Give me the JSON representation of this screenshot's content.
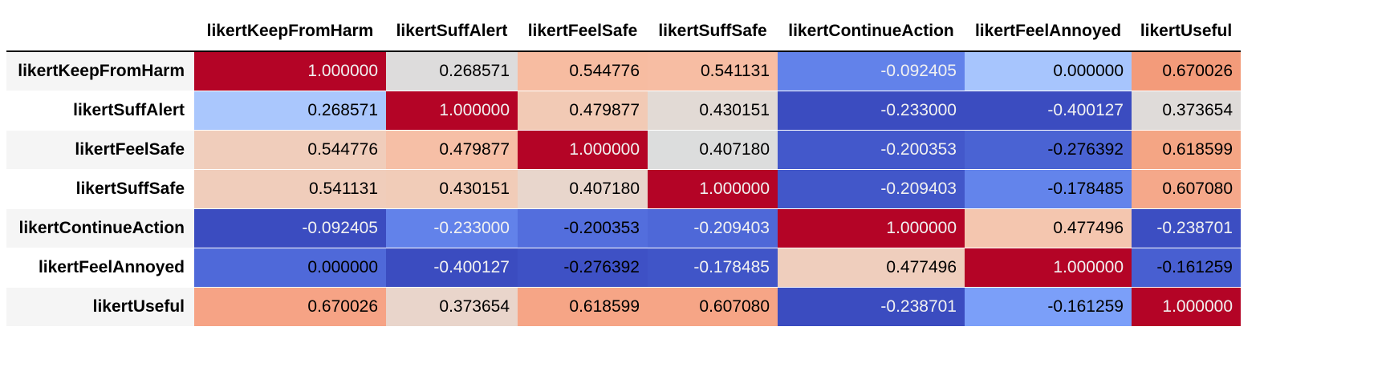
{
  "chart_data": {
    "type": "heatmap",
    "colormap": "coolwarm",
    "vmin": -0.400127,
    "vmax": 1.0,
    "columns": [
      "likertKeepFromHarm",
      "likertSuffAlert",
      "likertFeelSafe",
      "likertSuffSafe",
      "likertContinueAction",
      "likertFeelAnnoyed",
      "likertUseful"
    ],
    "rows": [
      "likertKeepFromHarm",
      "likertSuffAlert",
      "likertFeelSafe",
      "likertSuffSafe",
      "likertContinueAction",
      "likertFeelAnnoyed",
      "likertUseful"
    ],
    "values": [
      [
        1.0,
        0.268571,
        0.544776,
        0.541131,
        -0.092405,
        0.0,
        0.670026
      ],
      [
        0.268571,
        1.0,
        0.479877,
        0.430151,
        -0.233,
        -0.400127,
        0.373654
      ],
      [
        0.544776,
        0.479877,
        1.0,
        0.40718,
        -0.200353,
        -0.276392,
        0.618599
      ],
      [
        0.541131,
        0.430151,
        0.40718,
        1.0,
        -0.209403,
        -0.178485,
        0.60708
      ],
      [
        -0.092405,
        -0.233,
        -0.200353,
        -0.209403,
        1.0,
        0.477496,
        -0.238701
      ],
      [
        0.0,
        -0.400127,
        -0.276392,
        -0.178485,
        0.477496,
        1.0,
        -0.161259
      ],
      [
        0.670026,
        0.373654,
        0.618599,
        0.60708,
        -0.238701,
        -0.161259,
        1.0
      ]
    ],
    "display_values": [
      [
        "1.000000",
        "0.268571",
        "0.544776",
        "0.541131",
        "-0.092405",
        "0.000000",
        "0.670026"
      ],
      [
        "0.268571",
        "1.000000",
        "0.479877",
        "0.430151",
        "-0.233000",
        "-0.400127",
        "0.373654"
      ],
      [
        "0.544776",
        "0.479877",
        "1.000000",
        "0.407180",
        "-0.200353",
        "-0.276392",
        "0.618599"
      ],
      [
        "0.541131",
        "0.430151",
        "0.407180",
        "1.000000",
        "-0.209403",
        "-0.178485",
        "0.607080"
      ],
      [
        "-0.092405",
        "-0.233000",
        "-0.200353",
        "-0.209403",
        "1.000000",
        "0.477496",
        "-0.238701"
      ],
      [
        "0.000000",
        "-0.400127",
        "-0.276392",
        "-0.178485",
        "0.477496",
        "1.000000",
        "-0.161259"
      ],
      [
        "0.670026",
        "0.373654",
        "0.618599",
        "0.607080",
        "-0.238701",
        "-0.161259",
        "1.000000"
      ]
    ],
    "colors": [
      [
        "#b40426",
        "#dddcdc",
        "#f7bca1",
        "#f7bda3",
        "#6282ea",
        "#a7c5fd",
        "#f39b7a"
      ],
      [
        "#aac7fd",
        "#b40426",
        "#f2cab5",
        "#e2dad5",
        "#3b4cc0",
        "#3b4cc0",
        "#dfdbd9"
      ],
      [
        "#f0cdbb",
        "#f6bfa6",
        "#b40426",
        "#dcdddd",
        "#4358cb",
        "#4a63d3",
        "#f4a584"
      ],
      [
        "#f0cdbb",
        "#f1ccb8",
        "#e8d6cc",
        "#b40426",
        "#4257c9",
        "#6384eb",
        "#f5a88a"
      ],
      [
        "#3b4cc0",
        "#6282ea",
        "#536edd",
        "#4e68d8",
        "#b40426",
        "#f4c6af",
        "#3c4ec2"
      ],
      [
        "#4f69d9",
        "#3b4cc0",
        "#3e51c5",
        "#4055c8",
        "#efcebd",
        "#b40426",
        "#485fd1"
      ],
      [
        "#f6a385",
        "#e9d5cb",
        "#f6a586",
        "#f6a586",
        "#3b4cc0",
        "#7b9ff9",
        "#b40426"
      ]
    ],
    "text_colors": [
      [
        "#f1f1f1",
        "#000000",
        "#000000",
        "#000000",
        "#f1f1f1",
        "#000000",
        "#000000"
      ],
      [
        "#000000",
        "#f1f1f1",
        "#000000",
        "#000000",
        "#f1f1f1",
        "#f1f1f1",
        "#000000"
      ],
      [
        "#000000",
        "#000000",
        "#f1f1f1",
        "#000000",
        "#f1f1f1",
        "#000000",
        "#000000"
      ],
      [
        "#000000",
        "#000000",
        "#000000",
        "#f1f1f1",
        "#f1f1f1",
        "#000000",
        "#000000"
      ],
      [
        "#f1f1f1",
        "#f1f1f1",
        "#000000",
        "#f1f1f1",
        "#f1f1f1",
        "#000000",
        "#f1f1f1"
      ],
      [
        "#000000",
        "#f1f1f1",
        "#000000",
        "#f1f1f1",
        "#000000",
        "#f1f1f1",
        "#000000"
      ],
      [
        "#000000",
        "#000000",
        "#000000",
        "#000000",
        "#f1f1f1",
        "#000000",
        "#f1f1f1"
      ]
    ]
  }
}
